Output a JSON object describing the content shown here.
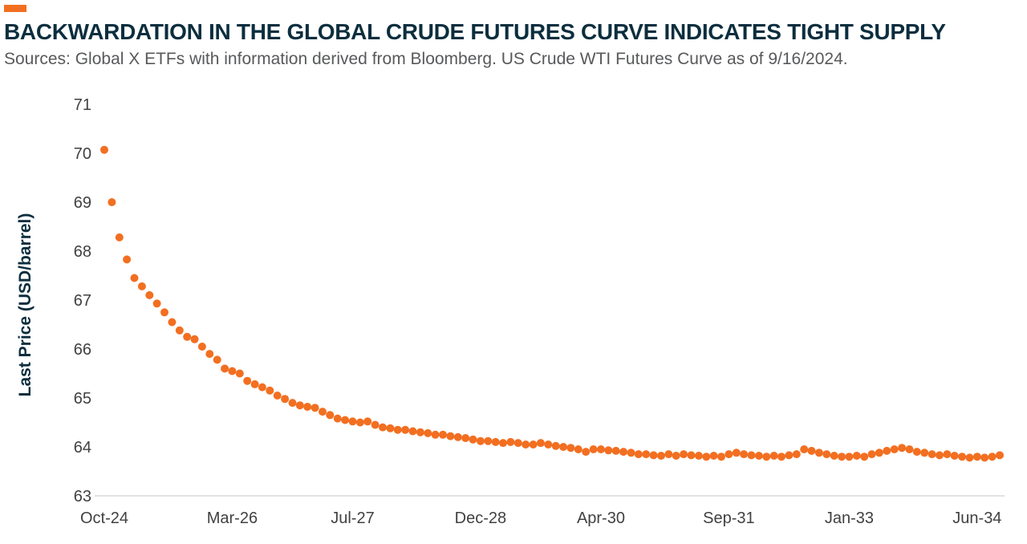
{
  "colors": {
    "accent_orange": "#f26f21",
    "title_navy": "#0c2e3e",
    "axis_line": "#d8d8d8",
    "tick_text": "#414042"
  },
  "chart_data": {
    "type": "scatter",
    "title": "BACKWARDATION IN THE GLOBAL CRUDE FUTURES CURVE INDICATES TIGHT SUPPLY",
    "subtitle": "Sources: Global X ETFs with information derived from Bloomberg. US Crude WTI Futures Curve as of 9/16/2024.",
    "ylabel": "Last Price (USD/barrel)",
    "ylim": [
      63,
      71
    ],
    "y_ticks": [
      63,
      64,
      65,
      66,
      67,
      68,
      69,
      70,
      71
    ],
    "x_ticks": [
      {
        "index": 0,
        "label": "Oct-24"
      },
      {
        "index": 17,
        "label": "Mar-26"
      },
      {
        "index": 33,
        "label": "Jul-27"
      },
      {
        "index": 50,
        "label": "Dec-28"
      },
      {
        "index": 66,
        "label": "Apr-30"
      },
      {
        "index": 83,
        "label": "Sep-31"
      },
      {
        "index": 99,
        "label": "Jan-33"
      },
      {
        "index": 116,
        "label": "Jun-34"
      }
    ],
    "grid": false,
    "legend": "none",
    "dot_color": "#f26f21",
    "values": [
      70.07,
      69.0,
      68.28,
      67.83,
      67.45,
      67.28,
      67.1,
      66.93,
      66.75,
      66.55,
      66.38,
      66.25,
      66.2,
      66.05,
      65.9,
      65.78,
      65.6,
      65.55,
      65.5,
      65.35,
      65.28,
      65.22,
      65.15,
      65.05,
      64.98,
      64.9,
      64.85,
      64.82,
      64.8,
      64.72,
      64.65,
      64.58,
      64.55,
      64.52,
      64.5,
      64.52,
      64.45,
      64.4,
      64.38,
      64.35,
      64.35,
      64.32,
      64.3,
      64.28,
      64.25,
      64.25,
      64.22,
      64.2,
      64.18,
      64.15,
      64.12,
      64.12,
      64.1,
      64.08,
      64.1,
      64.08,
      64.05,
      64.05,
      64.08,
      64.05,
      64.02,
      64.0,
      63.98,
      63.95,
      63.9,
      63.95,
      63.95,
      63.93,
      63.92,
      63.9,
      63.88,
      63.85,
      63.85,
      63.83,
      63.82,
      63.85,
      63.82,
      63.85,
      63.83,
      63.82,
      63.8,
      63.82,
      63.8,
      63.85,
      63.88,
      63.85,
      63.83,
      63.82,
      63.8,
      63.82,
      63.8,
      63.83,
      63.85,
      63.95,
      63.92,
      63.88,
      63.85,
      63.82,
      63.8,
      63.8,
      63.82,
      63.8,
      63.85,
      63.88,
      63.92,
      63.95,
      63.98,
      63.95,
      63.9,
      63.88,
      63.85,
      63.83,
      63.85,
      63.82,
      63.8,
      63.78,
      63.8,
      63.78,
      63.8,
      63.83
    ]
  }
}
